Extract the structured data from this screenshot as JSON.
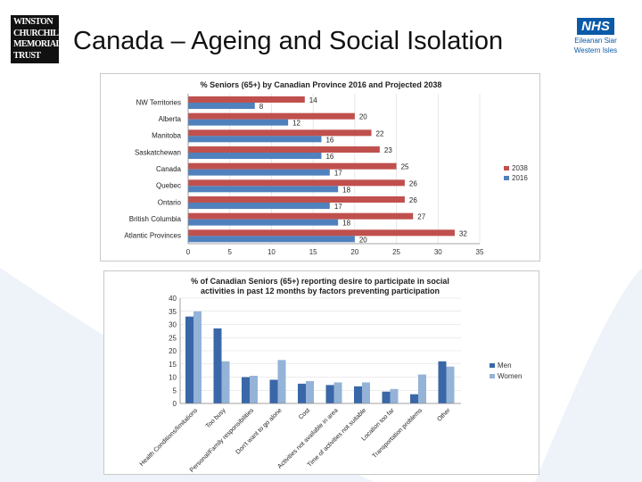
{
  "slide": {
    "title": "Canada – Ageing and Social Isolation",
    "logo_left_lines": [
      "WINSTON",
      "CHURCHILL",
      "MEMORIAL",
      "TRUST"
    ],
    "logo_right": {
      "nhs": "NHS",
      "line1": "Eileanan Siar",
      "line2": "Western Isles"
    }
  },
  "colors": {
    "red": "#c0504d",
    "blue": "#4f81bd",
    "dark_blue": "#3a67a8",
    "light_blue": "#95b3d7"
  },
  "chart_data": [
    {
      "type": "bar",
      "orientation": "horizontal",
      "title": "% Seniors (65+) by Canadian Province 2016 and Projected 2038",
      "categories": [
        "NW Territories",
        "Alberta",
        "Manitoba",
        "Saskatchewan",
        "Canada",
        "Quebec",
        "Ontario",
        "British Columbia",
        "Atlantic Provinces"
      ],
      "series": [
        {
          "name": "2038",
          "values": [
            14,
            20,
            22,
            23,
            25,
            26,
            26,
            27,
            32
          ]
        },
        {
          "name": "2016",
          "values": [
            8,
            12,
            16,
            16,
            17,
            18,
            17,
            18,
            20
          ]
        }
      ],
      "xlim": [
        0,
        35
      ],
      "xticks": [
        "0",
        "5",
        "10",
        "15",
        "20",
        "25",
        "30",
        "35"
      ],
      "legend_position": "right"
    },
    {
      "type": "bar",
      "title": "% of Canadian Seniors (65+) reporting desire to participate in social activities in past 12 months by factors preventing participation",
      "title_lines": [
        "% of Canadian Seniors (65+) reporting desire to participate in social",
        "activities in past 12 months by factors preventing participation"
      ],
      "categories": [
        "Health Conditions/limitations",
        "Too busy",
        "Personal/Family responsibilities",
        "Don't want to go alone",
        "Cost",
        "Activities not available in area",
        "Time of activities not suitable",
        "Location too far",
        "Transportation problems",
        "Other"
      ],
      "series": [
        {
          "name": "Men",
          "values": [
            33,
            28.5,
            10,
            9,
            7.5,
            7,
            6.5,
            4.5,
            3.5,
            16
          ]
        },
        {
          "name": "Women",
          "values": [
            35,
            16,
            10.5,
            16.5,
            8.5,
            8,
            8,
            5.5,
            11,
            14
          ]
        }
      ],
      "ylim": [
        0,
        40
      ],
      "yticks": [
        "0",
        "5",
        "10",
        "15",
        "20",
        "25",
        "30",
        "35",
        "40"
      ],
      "legend_position": "right"
    }
  ]
}
